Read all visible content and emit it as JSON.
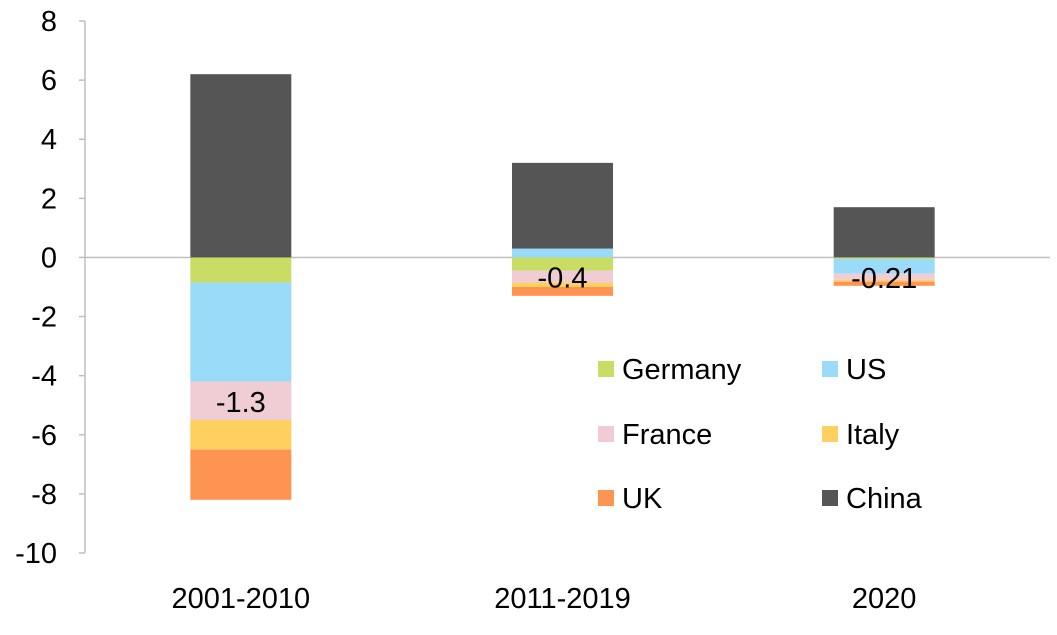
{
  "chart_data": {
    "type": "bar",
    "stacked": true,
    "title": "",
    "xlabel": "",
    "ylabel": "",
    "ylim": [
      -10,
      8
    ],
    "yticks": [
      8,
      6,
      4,
      2,
      0,
      -2,
      -4,
      -6,
      -8,
      -10
    ],
    "grid": false,
    "legend_position": "lower-right",
    "categories": [
      "2001-2010",
      "2011-2019",
      "2020"
    ],
    "series": [
      {
        "name": "Germany",
        "color": "#c9dd64",
        "values": [
          -0.85,
          -0.45,
          -0.05
        ]
      },
      {
        "name": "US",
        "color": "#99dbf9",
        "values": [
          -3.35,
          0.3,
          -0.5
        ]
      },
      {
        "name": "France",
        "color": "#f0ccd4",
        "values": [
          -1.3,
          -0.4,
          -0.21
        ]
      },
      {
        "name": "Italy",
        "color": "#fdd05f",
        "values": [
          -1.0,
          -0.15,
          -0.06
        ]
      },
      {
        "name": "UK",
        "color": "#fe9451",
        "values": [
          -1.7,
          -0.3,
          -0.14
        ]
      },
      {
        "name": "China",
        "color": "#555555",
        "values": [
          6.2,
          2.9,
          1.7
        ]
      }
    ],
    "data_labels": [
      {
        "category": "2001-2010",
        "series": "France",
        "text": "-1.3"
      },
      {
        "category": "2011-2019",
        "series": "France",
        "text": "-0.4"
      },
      {
        "category": "2020",
        "series": "France",
        "text": "-0.21"
      }
    ]
  }
}
